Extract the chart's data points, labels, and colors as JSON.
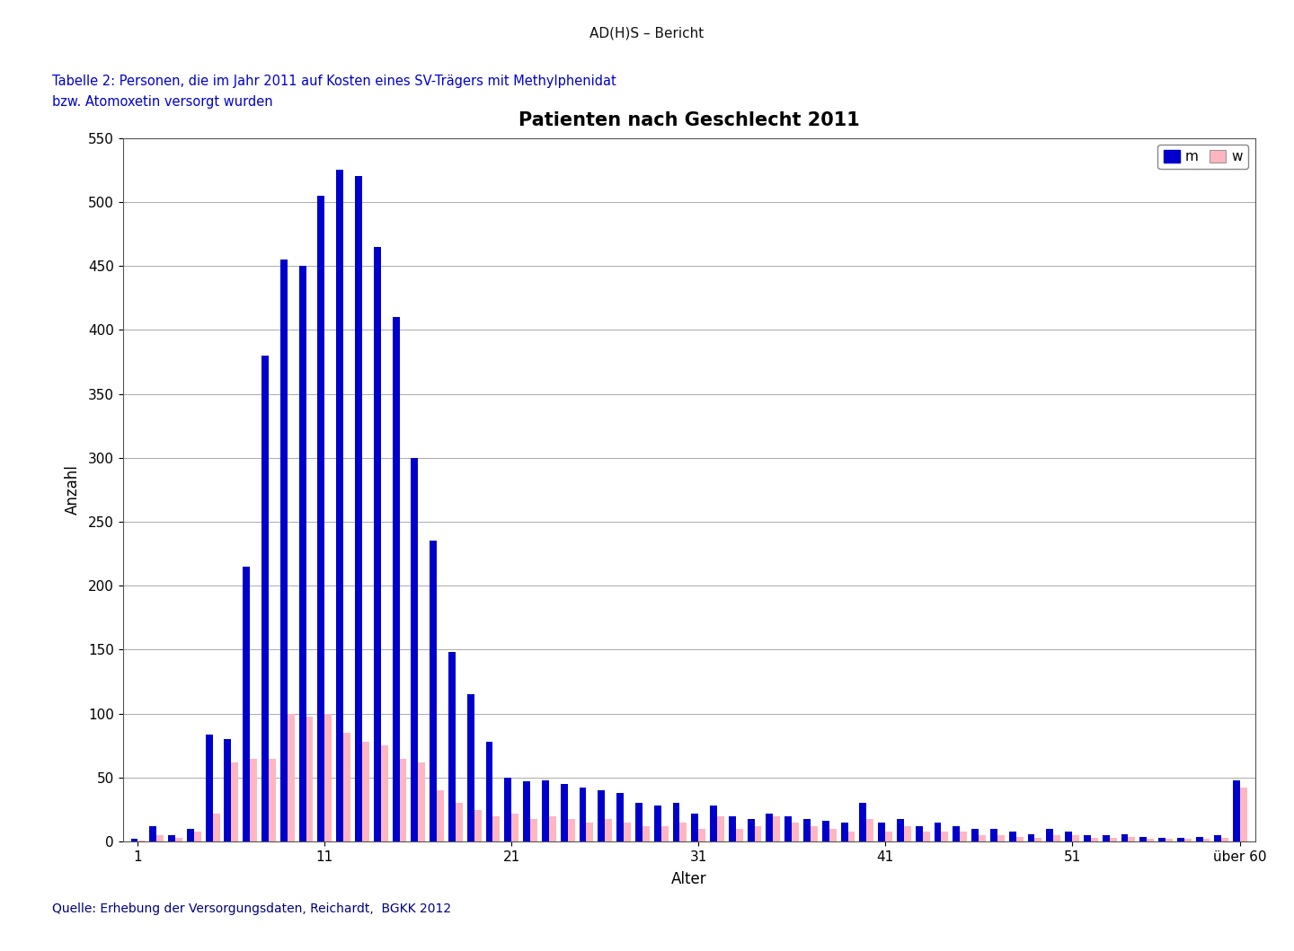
{
  "title": "Patienten nach Geschlecht 2011",
  "header": "AD(H)S – Bericht",
  "table_label_line1": "Tabelle 2: Personen, die im Jahr 2011 auf Kosten eines SV-Trägers mit Methylphenidat bzw. Atomoxetin versorgt wurden",
  "table_label_line2": "wurden",
  "source": "Quelle: Erhebung der Versorgungsdaten, Reichardt,  BGKK 2012",
  "xlabel": "Alter",
  "ylabel": "Anzahl",
  "ylim": [
    0,
    550
  ],
  "yticks": [
    0,
    50,
    100,
    150,
    200,
    250,
    300,
    350,
    400,
    450,
    500,
    550
  ],
  "color_m": "#0000CD",
  "color_w": "#FFB6C1",
  "ages": [
    1,
    2,
    3,
    4,
    5,
    6,
    7,
    8,
    9,
    10,
    11,
    12,
    13,
    14,
    15,
    16,
    17,
    18,
    19,
    20,
    21,
    22,
    23,
    24,
    25,
    26,
    27,
    28,
    29,
    30,
    31,
    32,
    33,
    34,
    35,
    36,
    37,
    38,
    39,
    40,
    41,
    42,
    43,
    44,
    45,
    46,
    47,
    48,
    49,
    50,
    51,
    52,
    53,
    54,
    55,
    56,
    57,
    58,
    59,
    60
  ],
  "age_labels": [
    "1",
    "11",
    "21",
    "31",
    "41",
    "51",
    "über 60"
  ],
  "age_tick_positions": [
    0,
    10,
    20,
    30,
    40,
    50,
    59
  ],
  "m_values": [
    2,
    12,
    5,
    10,
    84,
    80,
    215,
    380,
    455,
    450,
    505,
    525,
    520,
    465,
    410,
    300,
    235,
    148,
    115,
    78,
    50,
    47,
    48,
    45,
    42,
    40,
    38,
    30,
    28,
    30,
    22,
    28,
    20,
    18,
    22,
    20,
    18,
    16,
    15,
    30,
    15,
    18,
    12,
    15,
    12,
    10,
    10,
    8,
    6,
    10,
    8,
    5,
    5,
    6,
    4,
    3,
    3,
    4,
    5,
    48
  ],
  "w_values": [
    1,
    5,
    3,
    8,
    22,
    62,
    65,
    65,
    100,
    98,
    100,
    85,
    78,
    75,
    65,
    62,
    40,
    30,
    25,
    20,
    22,
    18,
    20,
    18,
    15,
    18,
    15,
    12,
    12,
    15,
    10,
    20,
    10,
    12,
    20,
    15,
    12,
    10,
    8,
    18,
    8,
    12,
    8,
    8,
    8,
    5,
    5,
    4,
    3,
    5,
    5,
    3,
    3,
    4,
    2,
    2,
    2,
    2,
    3,
    42
  ],
  "bar_width": 0.38,
  "background_color": "#ffffff",
  "grid_color": "#aaaaaa",
  "header_line_color": "#FF0000",
  "title_color": "#000000",
  "table_label_color": "#0000CD",
  "source_color": "#000080"
}
